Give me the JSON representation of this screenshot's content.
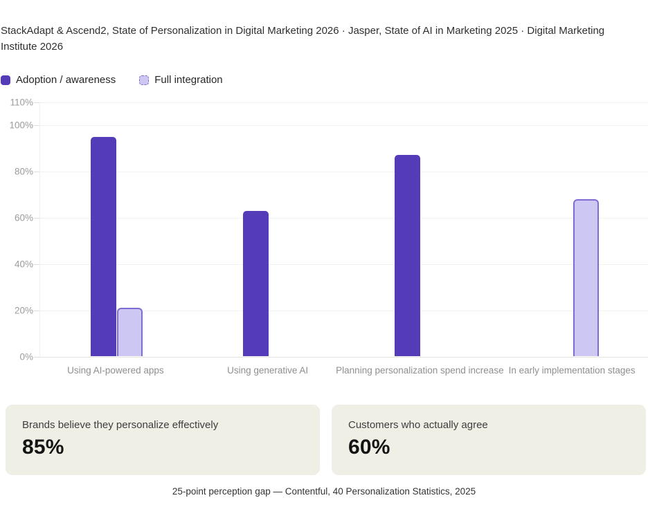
{
  "header": {
    "source_line": "StackAdapt & Ascend2, State of Personalization in Digital Marketing 2026 · Jasper, State of AI in Marketing 2025 · Digital Marketing Institute 2026"
  },
  "legend": {
    "items": [
      {
        "label": "Adoption / awareness",
        "swatch": "solid-square",
        "color": "#543bb8"
      },
      {
        "label": "Full integration",
        "swatch": "dashed-square",
        "fill": "#cdc7f4",
        "border": "#7e6cd3"
      }
    ]
  },
  "chart_data": {
    "type": "bar",
    "title": "",
    "xlabel": "",
    "ylabel": "",
    "categories": [
      "Using AI-powered apps",
      "Using generative AI",
      "Planning personalization spend increase",
      "In early implementation stages"
    ],
    "series": [
      {
        "name": "Adoption / awareness",
        "style": "solid",
        "color": "#543bb8",
        "values": [
          95,
          63,
          87,
          null
        ]
      },
      {
        "name": "Full integration",
        "style": "outlined",
        "fill": "#cdc7f4",
        "border": "#7e6cd3",
        "values": [
          21,
          null,
          null,
          68
        ]
      }
    ],
    "ylim": [
      0,
      110
    ],
    "yticks": [
      0,
      20,
      40,
      60,
      80,
      100,
      110
    ],
    "ytick_labels": [
      "0%",
      "20%",
      "40%",
      "60%",
      "80%",
      "100%",
      "110%"
    ],
    "grid": true,
    "legend_position": "top-left"
  },
  "stat_cards": [
    {
      "label": "Brands believe they personalize effectively",
      "value": "85%"
    },
    {
      "label": "Customers who actually agree",
      "value": "60%"
    }
  ],
  "footer": {
    "caption": "25-point perception gap — Contentful, 40 Personalization Statistics, 2025"
  },
  "colors": {
    "accent_dark": "#543bb8",
    "accent_light_fill": "#cdc7f4",
    "accent_light_border": "#7e6cd3",
    "card_background": "#f0efe6",
    "gridline": "#f2f2ef",
    "axis_text": "#9b9b9b"
  }
}
